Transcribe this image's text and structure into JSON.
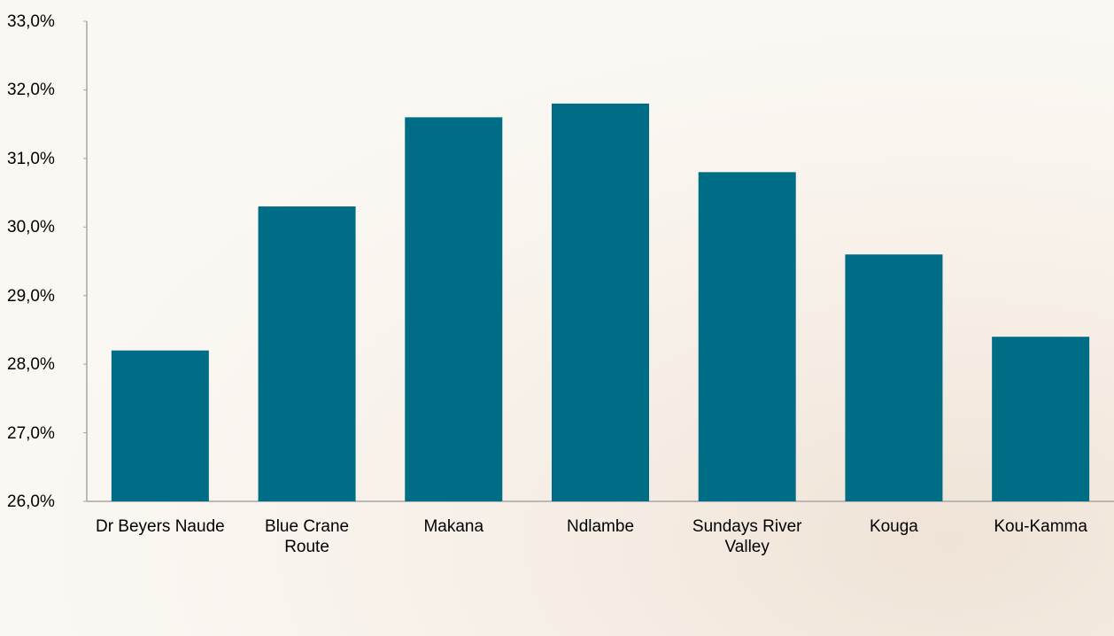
{
  "chart_data": {
    "type": "bar",
    "categories": [
      "Dr Beyers Naude",
      "Blue Crane Route",
      "Makana",
      "Ndlambe",
      "Sundays River Valley",
      "Kouga",
      "Kou-Kamma"
    ],
    "values": [
      28.2,
      30.3,
      31.6,
      31.8,
      30.8,
      29.6,
      28.4
    ],
    "color": "#006d87",
    "ylim": [
      26,
      33
    ],
    "yticks": [
      {
        "value": 26,
        "label": "26,0%"
      },
      {
        "value": 27,
        "label": "27,0%"
      },
      {
        "value": 28,
        "label": "28,0%"
      },
      {
        "value": 29,
        "label": "29,0%"
      },
      {
        "value": 30,
        "label": "30,0%"
      },
      {
        "value": 31,
        "label": "31,0%"
      },
      {
        "value": 32,
        "label": "32,0%"
      },
      {
        "value": 33,
        "label": "33,0%"
      }
    ],
    "grid": false
  }
}
